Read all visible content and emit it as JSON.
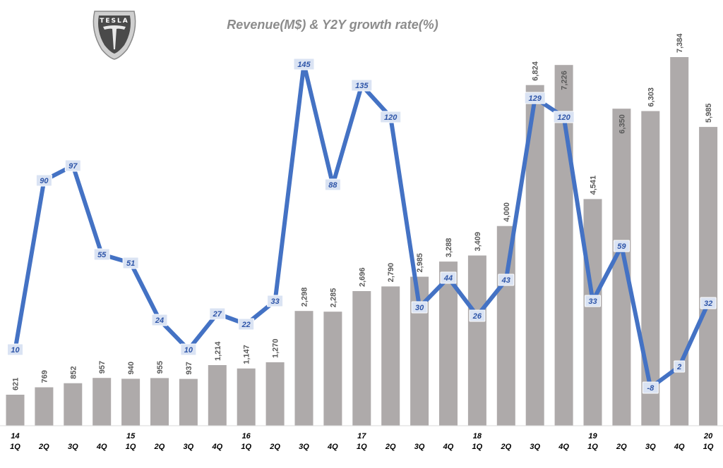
{
  "chart_data": {
    "type": "bar+line",
    "title": "Revenue(M$) & Y2Y growth rate(%)",
    "logo_text": "TESLA",
    "x_year_labels": [
      "14",
      "",
      "",
      "",
      "15",
      "",
      "",
      "",
      "16",
      "",
      "",
      "",
      "17",
      "",
      "",
      "",
      "18",
      "",
      "",
      "",
      "19",
      "",
      "",
      "",
      "20"
    ],
    "x_quarter_labels": [
      "1Q",
      "2Q",
      "3Q",
      "4Q",
      "1Q",
      "2Q",
      "3Q",
      "4Q",
      "1Q",
      "2Q",
      "3Q",
      "4Q",
      "1Q",
      "2Q",
      "3Q",
      "4Q",
      "1Q",
      "2Q",
      "3Q",
      "4Q",
      "1Q",
      "2Q",
      "3Q",
      "4Q",
      "1Q"
    ],
    "series": [
      {
        "name": "Revenue (M$)",
        "kind": "bar",
        "color": "#aeaaaa",
        "values": [
          621,
          769,
          852,
          957,
          940,
          955,
          937,
          1214,
          1147,
          1270,
          2298,
          2285,
          2696,
          2790,
          2985,
          3288,
          3409,
          4000,
          6824,
          7226,
          4541,
          6350,
          6303,
          7384,
          5985
        ],
        "labels": [
          "621",
          "769",
          "852",
          "957",
          "940",
          "955",
          "937",
          "1,214",
          "1,147",
          "1,270",
          "2,298",
          "2,285",
          "2,696",
          "2,790",
          "2,985",
          "3,288",
          "3,409",
          "4,000",
          "6,824",
          "7,226",
          "4,541",
          "6,350",
          "6,303",
          "7,384",
          "5,985"
        ]
      },
      {
        "name": "Y2Y growth rate (%)",
        "kind": "line",
        "color": "#4472c4",
        "values": [
          10,
          90,
          97,
          55,
          51,
          24,
          10,
          27,
          22,
          33,
          145,
          88,
          135,
          120,
          30,
          44,
          26,
          43,
          129,
          120,
          33,
          59,
          -8,
          2,
          32
        ],
        "labels": [
          "10",
          "90",
          "97",
          "55",
          "51",
          "24",
          "10",
          "27",
          "22",
          "33",
          "145",
          "88",
          "135",
          "120",
          "30",
          "44",
          "26",
          "43",
          "129",
          "120",
          "33",
          "59",
          "-8",
          "2",
          "32"
        ]
      }
    ],
    "y_bar_range": [
      0,
      7700
    ],
    "y_line_range": [
      -15,
      160
    ],
    "grid": false,
    "legend": "none"
  }
}
